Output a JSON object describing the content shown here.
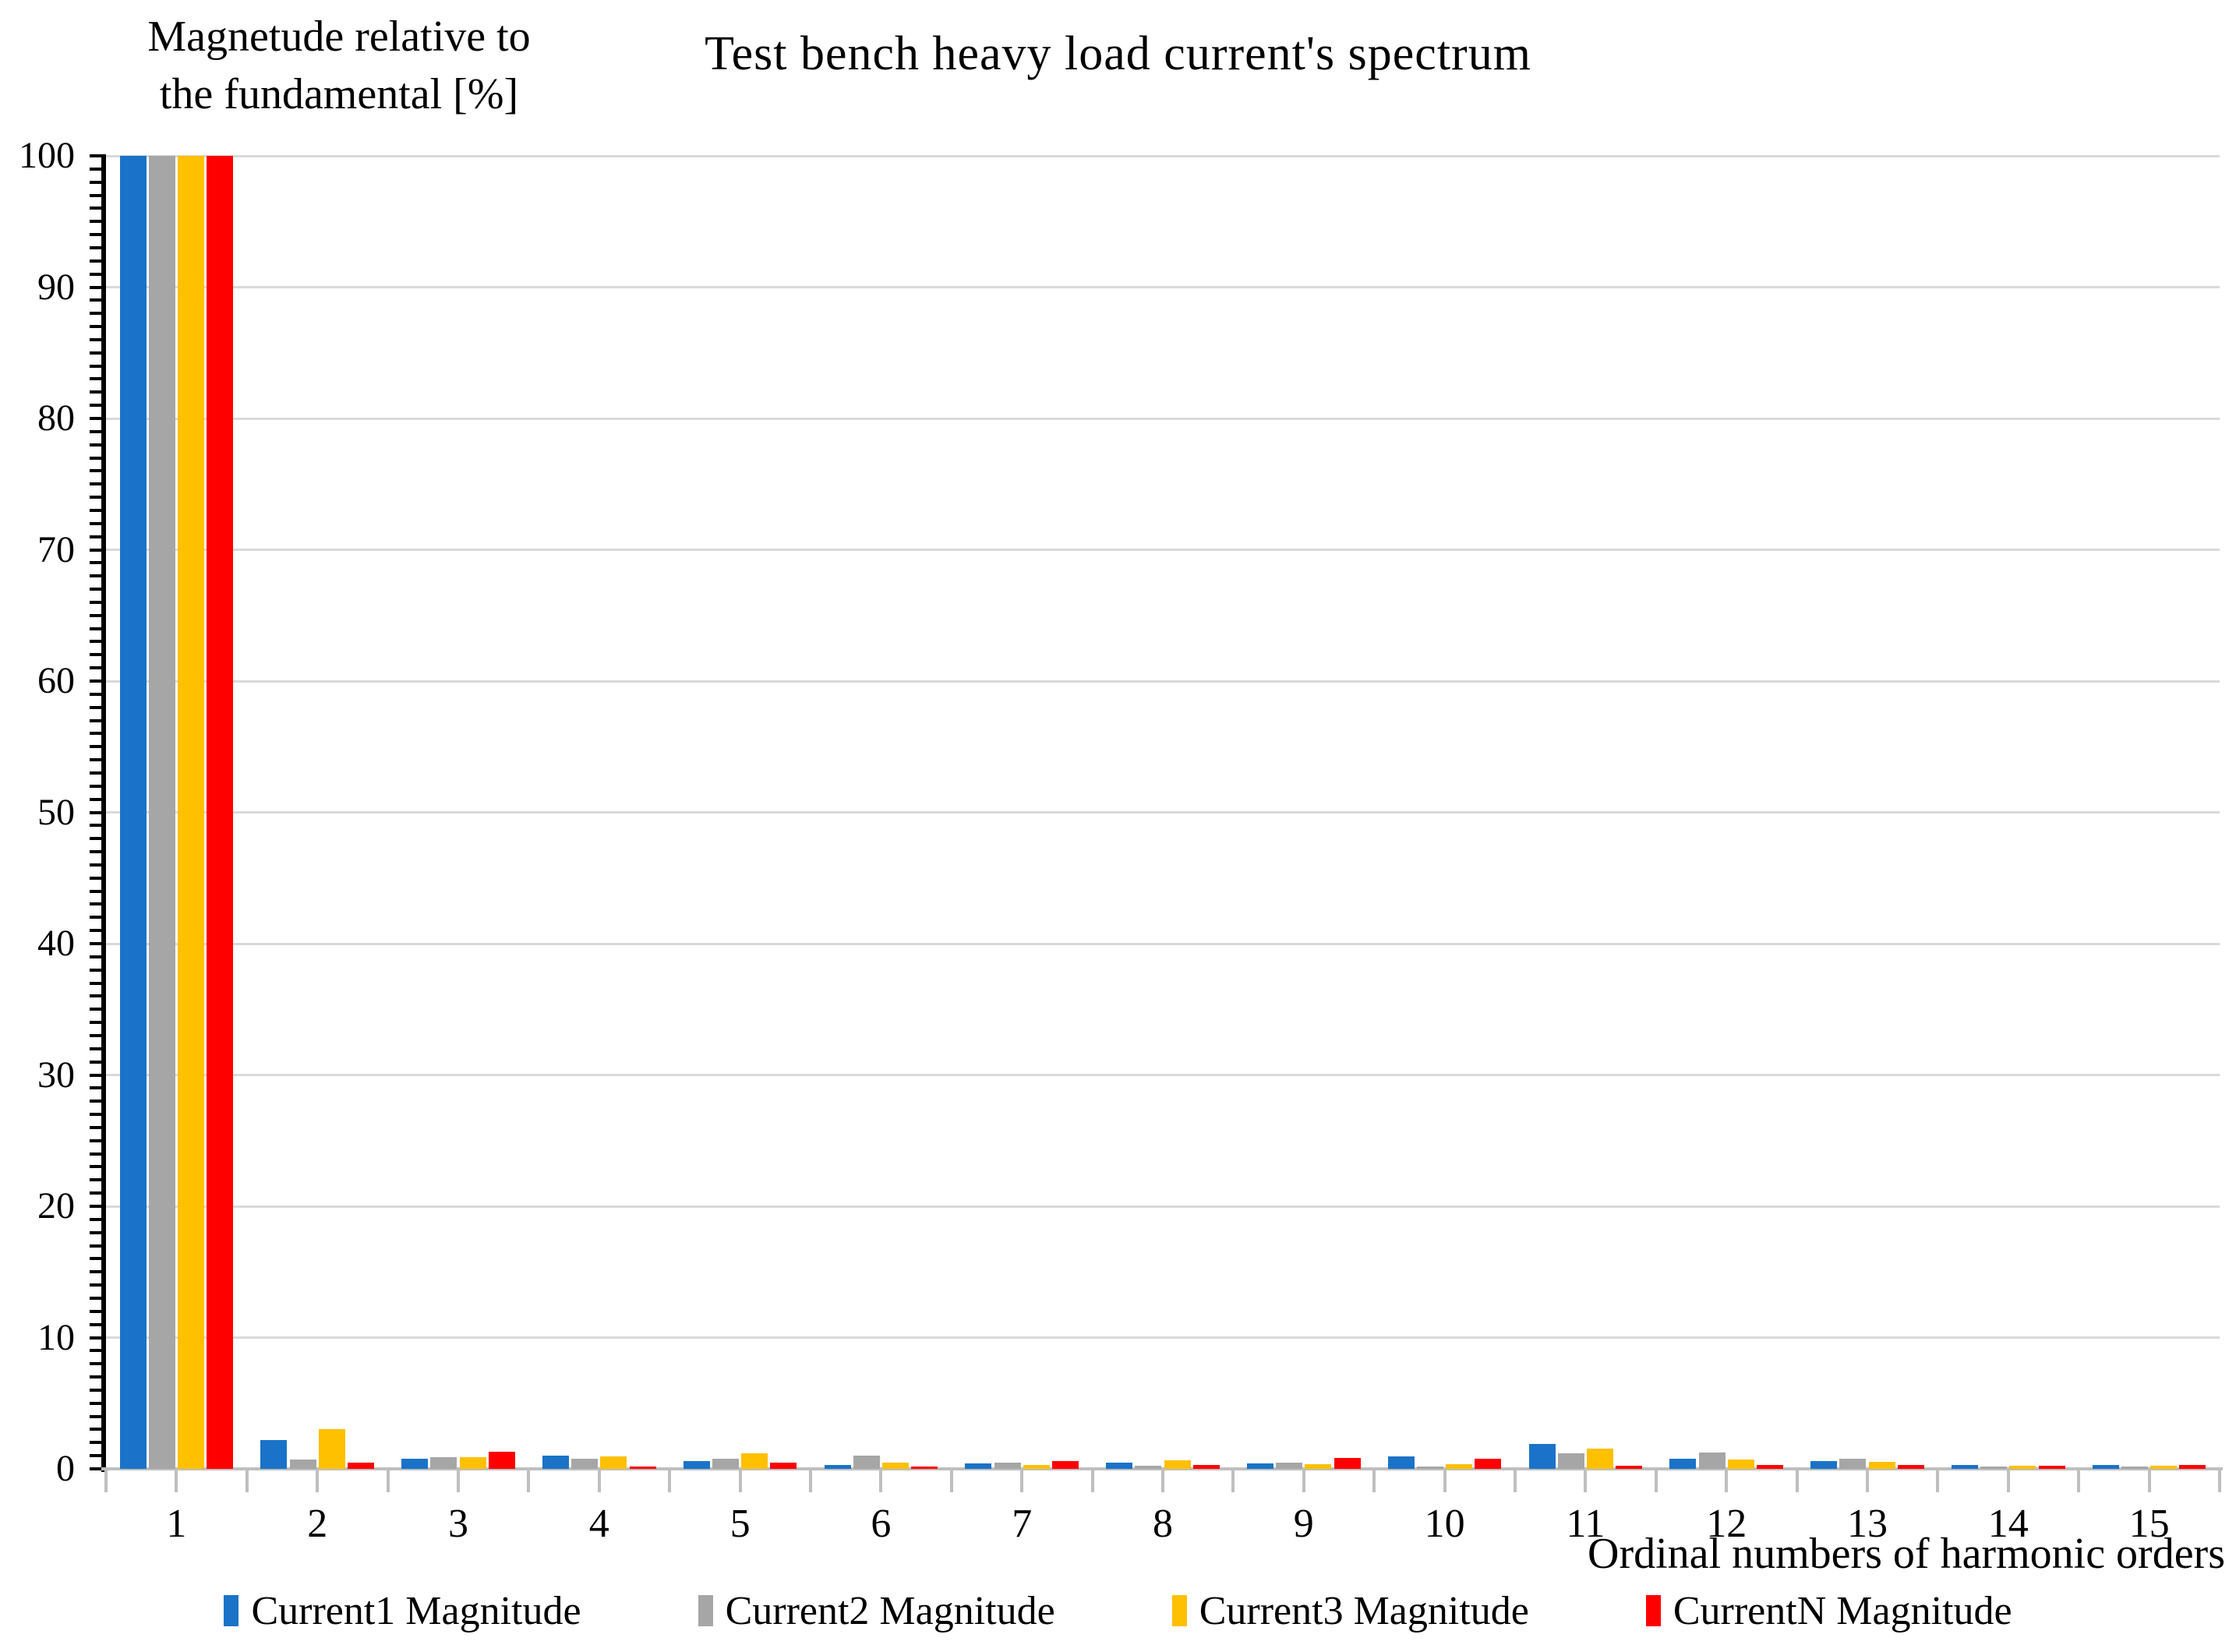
{
  "chart_data": {
    "type": "bar",
    "title": "Test bench heavy load current's spectrum",
    "ylabel": "Magnetude relative to the fundamental [%]",
    "y_axis_title_lines": [
      "Magnetude relative to",
      "the fundamental [%]"
    ],
    "xlabel": "Ordinal numbers of harmonic orders",
    "categories": [
      "1",
      "2",
      "3",
      "4",
      "5",
      "6",
      "7",
      "8",
      "9",
      "10",
      "11",
      "12",
      "13",
      "14",
      "15"
    ],
    "ylim": [
      0,
      100
    ],
    "y_major_step": 10,
    "y_minor_step": 1,
    "grid": true,
    "legend_position": "bottom",
    "colors": {
      "gridline": "#d9d9d9",
      "axis_line": "#000000",
      "baseline": "#bfbfbf",
      "x_tick": "#bfbfbf",
      "text": "#000000",
      "background": "#ffffff"
    },
    "series": [
      {
        "name": "Current1 Magnitude",
        "color": "#1a73c8",
        "values": [
          100,
          2.2,
          0.8,
          1.0,
          0.6,
          0.3,
          0.4,
          0.5,
          0.4,
          0.95,
          1.9,
          0.75,
          0.6,
          0.3,
          0.3
        ]
      },
      {
        "name": "Current2 Magnitude",
        "color": "#a6a6a6",
        "values": [
          100,
          0.7,
          0.9,
          0.8,
          0.8,
          1.0,
          0.5,
          0.25,
          0.45,
          0.15,
          1.2,
          1.25,
          0.75,
          0.15,
          0.15
        ]
      },
      {
        "name": "Current3 Magnitude",
        "color": "#ffc000",
        "values": [
          100,
          3.0,
          0.9,
          0.95,
          1.2,
          0.5,
          0.3,
          0.65,
          0.35,
          0.35,
          1.55,
          0.7,
          0.55,
          0.25,
          0.25
        ]
      },
      {
        "name": "CurrentN Magnitude",
        "color": "#ff0000",
        "values": [
          100,
          0.45,
          1.3,
          0.2,
          0.5,
          0.2,
          0.6,
          0.3,
          0.85,
          0.8,
          0.25,
          0.3,
          0.3,
          0.25,
          0.3
        ]
      }
    ]
  }
}
